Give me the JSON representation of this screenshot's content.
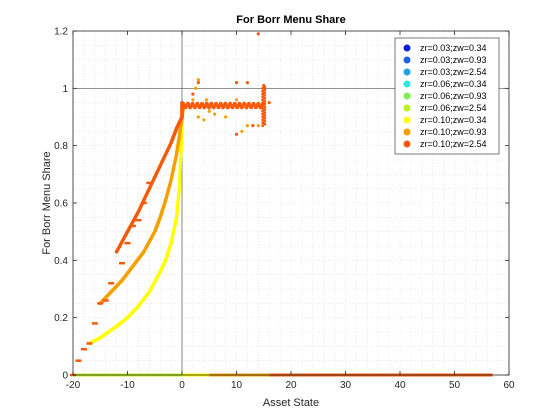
{
  "chart_data": {
    "type": "scatter",
    "title": "For Borr Menu Share",
    "xlabel": "Asset State",
    "ylabel": "For Borr Menu Share",
    "xlim": [
      -20,
      60
    ],
    "ylim": [
      0,
      1.2
    ],
    "xticks": [
      "-20",
      "-10",
      "0",
      "10",
      "20",
      "30",
      "40",
      "50",
      "60"
    ],
    "yticks": [
      "0",
      "0.2",
      "0.4",
      "0.6",
      "0.8",
      "1",
      "1.2"
    ],
    "grid": "minor dotted",
    "reference_lines": {
      "x": 0,
      "y": 1
    },
    "legend_position": "top-right",
    "series": [
      {
        "name": "zr=0.03;zw=0.34",
        "color": "#0a1fdc",
        "x_range": [
          -20,
          1
        ],
        "y": 0
      },
      {
        "name": "zr=0.03;zw=0.93",
        "color": "#1f5fe6",
        "x_range": [
          -20,
          1
        ],
        "y": 0
      },
      {
        "name": "zr=0.03;zw=2.54",
        "color": "#1fa0e8",
        "x_range": [
          -20,
          1
        ],
        "y": 0
      },
      {
        "name": "zr=0.06;zw=0.34",
        "color": "#2ee8e0",
        "x_range": [
          -20,
          2
        ],
        "y": 0
      },
      {
        "name": "zr=0.06;zw=0.93",
        "color": "#7ff050",
        "x_range": [
          -20,
          2
        ],
        "y": 0
      },
      {
        "name": "zr=0.06;zw=2.54",
        "color": "#b8f020",
        "x_range": [
          -20,
          3
        ],
        "y": 0
      },
      {
        "name": "zr=0.10;zw=0.34",
        "color": "#ffff00",
        "curve": [
          [
            -17,
            0.11
          ],
          [
            -15,
            0.13
          ],
          [
            -12,
            0.17
          ],
          [
            -10,
            0.2
          ],
          [
            -8,
            0.24
          ],
          [
            -6,
            0.29
          ],
          [
            -4,
            0.36
          ],
          [
            -3,
            0.4
          ],
          [
            -2,
            0.46
          ],
          [
            -1,
            0.55
          ],
          [
            -0.5,
            0.65
          ],
          [
            -0.2,
            0.78
          ],
          [
            0,
            0.86
          ],
          [
            0.1,
            0.93
          ]
        ],
        "zero_range": [
          0,
          5
        ]
      },
      {
        "name": "zr=0.10;zw=0.93",
        "color": "#f5a000",
        "curve": [
          [
            -15,
            0.25
          ],
          [
            -13,
            0.29
          ],
          [
            -11,
            0.33
          ],
          [
            -9,
            0.38
          ],
          [
            -7,
            0.43
          ],
          [
            -5,
            0.5
          ],
          [
            -4,
            0.55
          ],
          [
            -3,
            0.61
          ],
          [
            -2,
            0.68
          ],
          [
            -1,
            0.77
          ],
          [
            -0.5,
            0.83
          ],
          [
            0,
            0.9
          ],
          [
            0.2,
            0.93
          ]
        ],
        "zero_range": [
          5,
          16
        ],
        "scatter": [
          [
            2,
            0.96
          ],
          [
            3,
            0.9
          ],
          [
            4,
            0.89
          ],
          [
            4.5,
            0.96
          ],
          [
            5,
            0.92
          ],
          [
            6,
            0.91
          ],
          [
            8,
            0.9
          ],
          [
            3,
            1.03
          ],
          [
            2.5,
            1.0
          ],
          [
            10,
            0.96
          ],
          [
            11,
            0.85
          ],
          [
            12,
            0.87
          ],
          [
            14,
            0.87
          ]
        ]
      },
      {
        "name": "zr=0.10;zw=2.54",
        "color": "#f55a0a",
        "curve": [
          [
            -12,
            0.43
          ],
          [
            -10,
            0.5
          ],
          [
            -8,
            0.57
          ],
          [
            -6,
            0.65
          ],
          [
            -4,
            0.73
          ],
          [
            -2,
            0.81
          ],
          [
            -1,
            0.86
          ],
          [
            0,
            0.9
          ],
          [
            0,
            0.95
          ]
        ],
        "plateau": [
          0,
          15,
          0.94
        ],
        "steps": [
          [
            -20,
            0.0
          ],
          [
            -19,
            0.05
          ],
          [
            -18,
            0.09
          ],
          [
            -17,
            0.11
          ],
          [
            -16,
            0.18
          ],
          [
            -15,
            0.25
          ],
          [
            -14,
            0.26
          ],
          [
            -13,
            0.32
          ],
          [
            -11,
            0.39
          ],
          [
            -10,
            0.46
          ],
          [
            -9,
            0.52
          ],
          [
            -8,
            0.54
          ],
          [
            -7,
            0.6
          ],
          [
            -6,
            0.67
          ]
        ],
        "zero_range": [
          16,
          57
        ],
        "scatter": [
          [
            14,
            1.19
          ],
          [
            10,
            1.02
          ],
          [
            12,
            1.02
          ],
          [
            15,
            1.01
          ],
          [
            3,
            1.02
          ],
          [
            2,
            0.98
          ],
          [
            16,
            0.95
          ],
          [
            10,
            0.84
          ],
          [
            13,
            0.87
          ]
        ]
      }
    ]
  }
}
